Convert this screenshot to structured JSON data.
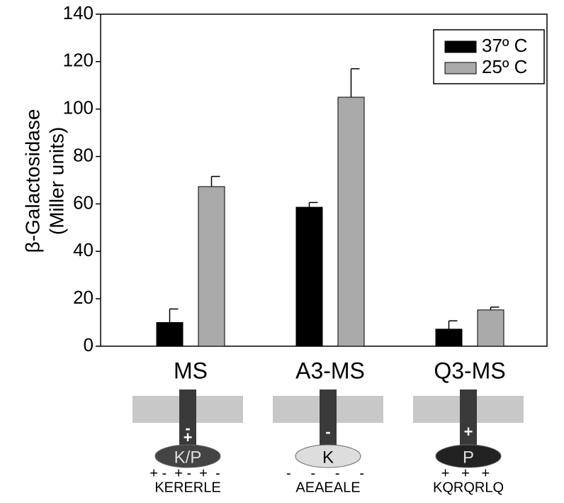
{
  "chart_data": {
    "type": "bar",
    "y_label": [
      "β-Galactosidase",
      "(Miller units)"
    ],
    "categories": [
      "MS",
      "A3-MS",
      "Q3-MS"
    ],
    "series": [
      {
        "name": "37º C",
        "color": "#000000",
        "values": [
          10,
          58.6,
          7.2
        ],
        "errors": [
          5.7,
          2,
          3.5
        ]
      },
      {
        "name": "25º C",
        "color": "#aaaaaa",
        "values": [
          67.3,
          105,
          15.3
        ],
        "errors": [
          4.3,
          12,
          1.2
        ]
      }
    ],
    "ylim": [
      0,
      140
    ],
    "yticks": [
      0,
      20,
      40,
      60,
      80,
      100,
      120,
      140
    ],
    "legend": "upper right"
  },
  "diagrams": [
    {
      "stem_sign": "-",
      "stem_sign2": "+",
      "domain": "K/P",
      "charges": "+ -  + -  +  -",
      "sequence": "KERERLE"
    },
    {
      "stem_sign": "-",
      "domain": "K",
      "charges": "-     -     -     -",
      "sequence": "AEAEALE"
    },
    {
      "stem_sign": "+",
      "domain": "P",
      "charges": "+   +   +",
      "sequence": "KQRQRLQ"
    }
  ]
}
